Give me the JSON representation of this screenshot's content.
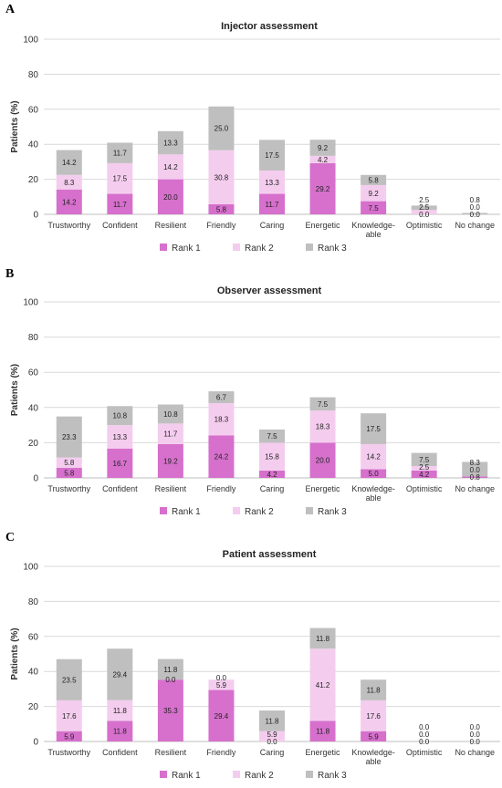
{
  "series_colors": [
    "#d670cc",
    "#f4cdee",
    "#bfbfbf"
  ],
  "chart_data": [
    {
      "type": "bar",
      "stacked": true,
      "panel": "A",
      "title": "Injector assessment",
      "ylabel": "Patients (%)",
      "ylim": [
        0,
        100
      ],
      "yticks": [
        0,
        20,
        40,
        60,
        80,
        100
      ],
      "grid": true,
      "legend_position": "bottom",
      "categories": [
        "Trustworthy",
        "Confident",
        "Resilient",
        "Friendly",
        "Caring",
        "Energetic",
        [
          "Knowledge-",
          "able"
        ],
        "Optimistic",
        "No change"
      ],
      "series": [
        {
          "name": "Rank 1",
          "values": [
            14.2,
            11.7,
            20.0,
            5.8,
            11.7,
            29.2,
            7.5,
            0.0,
            0.0
          ]
        },
        {
          "name": "Rank 2",
          "values": [
            8.3,
            17.5,
            14.2,
            30.8,
            13.3,
            4.2,
            9.2,
            2.5,
            0.0
          ]
        },
        {
          "name": "Rank 3",
          "values": [
            14.2,
            11.7,
            13.3,
            25.0,
            17.5,
            9.2,
            5.8,
            2.5,
            0.8
          ]
        }
      ]
    },
    {
      "type": "bar",
      "stacked": true,
      "panel": "B",
      "title": "Observer assessment",
      "ylabel": "Patients (%)",
      "ylim": [
        0,
        100
      ],
      "yticks": [
        0,
        20,
        40,
        60,
        80,
        100
      ],
      "grid": true,
      "legend_position": "bottom",
      "categories": [
        "Trustworthy",
        "Confident",
        "Resilient",
        "Friendly",
        "Caring",
        "Energetic",
        [
          "Knowledge-",
          "able"
        ],
        "Optimistic",
        "No change"
      ],
      "series": [
        {
          "name": "Rank 1",
          "values": [
            5.8,
            16.7,
            19.2,
            24.2,
            4.2,
            20.0,
            5.0,
            4.2,
            0.8
          ]
        },
        {
          "name": "Rank 2",
          "values": [
            5.8,
            13.3,
            11.7,
            18.3,
            15.8,
            18.3,
            14.2,
            2.5,
            0.0
          ]
        },
        {
          "name": "Rank 3",
          "values": [
            23.3,
            10.8,
            10.8,
            6.7,
            7.5,
            7.5,
            17.5,
            7.5,
            8.3
          ]
        }
      ]
    },
    {
      "type": "bar",
      "stacked": true,
      "panel": "C",
      "title": "Patient assessment",
      "ylabel": "Patients (%)",
      "ylim": [
        0,
        100
      ],
      "yticks": [
        0,
        20,
        40,
        60,
        80,
        100
      ],
      "grid": true,
      "legend_position": "bottom",
      "categories": [
        "Trustworthy",
        "Confident",
        "Resilient",
        "Friendly",
        "Caring",
        "Energetic",
        [
          "Knowledge-",
          "able"
        ],
        "Optimistic",
        "No change"
      ],
      "series": [
        {
          "name": "Rank 1",
          "values": [
            5.9,
            11.8,
            35.3,
            29.4,
            0.0,
            11.8,
            5.9,
            0.0,
            0.0
          ]
        },
        {
          "name": "Rank 2",
          "values": [
            17.6,
            11.8,
            0.0,
            5.9,
            5.9,
            41.2,
            17.6,
            0.0,
            0.0
          ]
        },
        {
          "name": "Rank 3",
          "values": [
            23.5,
            29.4,
            11.8,
            0.0,
            11.8,
            11.8,
            11.8,
            0.0,
            0.0
          ]
        }
      ]
    }
  ]
}
